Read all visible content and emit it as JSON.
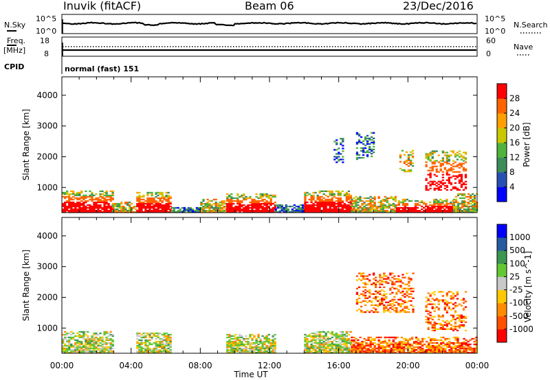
{
  "header": {
    "station": "Inuvik (fitACF)",
    "beam": "Beam 06",
    "date": "23/Dec/2016"
  },
  "top_panels": {
    "nsky_label": "N.Sky",
    "nsearch_label": "N.Search",
    "nsky_ticks": [
      "10^5",
      "10^0"
    ],
    "nsearch_ticks": [
      "10^5",
      "10^0"
    ],
    "freq_label": "Freq.",
    "freq_unit": "[MHz]",
    "freq_ticks": [
      "18",
      "8"
    ],
    "nave_label": "Nave",
    "nave_ticks": [
      "60",
      "0"
    ],
    "cpid_label": "CPID",
    "cpid_text": "normal (fast) 151"
  },
  "colors": {
    "power_scale": [
      "#0000ff",
      "#2850b4",
      "#3c8c5a",
      "#50b43c",
      "#c8c800",
      "#ffa000",
      "#ff6400",
      "#ff0000"
    ],
    "velocity_scale": [
      "#ff0000",
      "#ff5000",
      "#ff8c00",
      "#ffc800",
      "#c8c8c8",
      "#64c832",
      "#3c9650",
      "#285aa0",
      "#0000ff"
    ]
  },
  "chart_data": [
    {
      "type": "heatmap",
      "title": "",
      "xlabel": "",
      "ylabel": "Slant Range [km]",
      "colorbar_label": "Power [dB]",
      "colorbar_ticks": [
        "4",
        "8",
        "12",
        "16",
        "20",
        "24",
        "28"
      ],
      "xlim": [
        0,
        24
      ],
      "ylim": [
        180,
        4600
      ],
      "y_ticks": [
        "1000",
        "2000",
        "3000",
        "4000"
      ],
      "x_ticks": [
        "00:00",
        "04:00",
        "08:00",
        "12:00",
        "16:00",
        "20:00",
        "00:00"
      ],
      "regions": [
        {
          "x0": 0.0,
          "x1": 2.9,
          "y0": 180,
          "y1": 900,
          "level": "high"
        },
        {
          "x0": 2.9,
          "x1": 4.3,
          "y0": 180,
          "y1": 500,
          "level": "mid"
        },
        {
          "x0": 4.3,
          "x1": 6.3,
          "y0": 180,
          "y1": 850,
          "level": "high"
        },
        {
          "x0": 6.3,
          "x1": 8.0,
          "y0": 180,
          "y1": 350,
          "level": "low"
        },
        {
          "x0": 8.0,
          "x1": 9.5,
          "y0": 180,
          "y1": 600,
          "level": "mid"
        },
        {
          "x0": 9.5,
          "x1": 12.3,
          "y0": 180,
          "y1": 800,
          "level": "high"
        },
        {
          "x0": 12.3,
          "x1": 14.0,
          "y0": 180,
          "y1": 450,
          "level": "low"
        },
        {
          "x0": 14.0,
          "x1": 16.7,
          "y0": 180,
          "y1": 900,
          "level": "high"
        },
        {
          "x0": 16.7,
          "x1": 19.3,
          "y0": 180,
          "y1": 700,
          "level": "mid"
        },
        {
          "x0": 19.3,
          "x1": 22.6,
          "y0": 180,
          "y1": 600,
          "level": "high"
        },
        {
          "x0": 22.6,
          "x1": 24.0,
          "y0": 180,
          "y1": 800,
          "level": "mid"
        },
        {
          "x0": 15.7,
          "x1": 16.3,
          "y0": 1800,
          "y1": 2600,
          "level": "low"
        },
        {
          "x0": 17.0,
          "x1": 18.0,
          "y0": 1900,
          "y1": 2800,
          "level": "low"
        },
        {
          "x0": 19.5,
          "x1": 20.3,
          "y0": 1500,
          "y1": 2200,
          "level": "mid"
        },
        {
          "x0": 21.0,
          "x1": 23.3,
          "y0": 900,
          "y1": 2200,
          "level": "high"
        }
      ]
    },
    {
      "type": "heatmap",
      "title": "",
      "xlabel": "Time UT",
      "ylabel": "Slant Range [km]",
      "colorbar_label": "Velocity [m s^-1]",
      "colorbar_ticks": [
        "-1000",
        "-500",
        "-100",
        "-25",
        "25",
        "100",
        "500",
        "1000"
      ],
      "xlim": [
        0,
        24
      ],
      "ylim": [
        180,
        4600
      ],
      "y_ticks": [
        "1000",
        "2000",
        "3000",
        "4000"
      ],
      "x_ticks": [
        "00:00",
        "04:00",
        "08:00",
        "12:00",
        "16:00",
        "20:00",
        "00:00"
      ],
      "regions": [
        {
          "x0": 0.0,
          "x1": 2.9,
          "y0": 180,
          "y1": 900,
          "level": "mixed"
        },
        {
          "x0": 4.3,
          "x1": 6.3,
          "y0": 180,
          "y1": 850,
          "level": "mixed"
        },
        {
          "x0": 9.5,
          "x1": 12.3,
          "y0": 180,
          "y1": 800,
          "level": "mixed"
        },
        {
          "x0": 14.0,
          "x1": 16.7,
          "y0": 180,
          "y1": 900,
          "level": "mixed"
        },
        {
          "x0": 16.7,
          "x1": 24.0,
          "y0": 180,
          "y1": 700,
          "level": "negative"
        },
        {
          "x0": 17.0,
          "x1": 20.3,
          "y0": 1500,
          "y1": 2800,
          "level": "negative"
        },
        {
          "x0": 21.0,
          "x1": 23.3,
          "y0": 900,
          "y1": 2200,
          "level": "negative"
        }
      ]
    }
  ]
}
